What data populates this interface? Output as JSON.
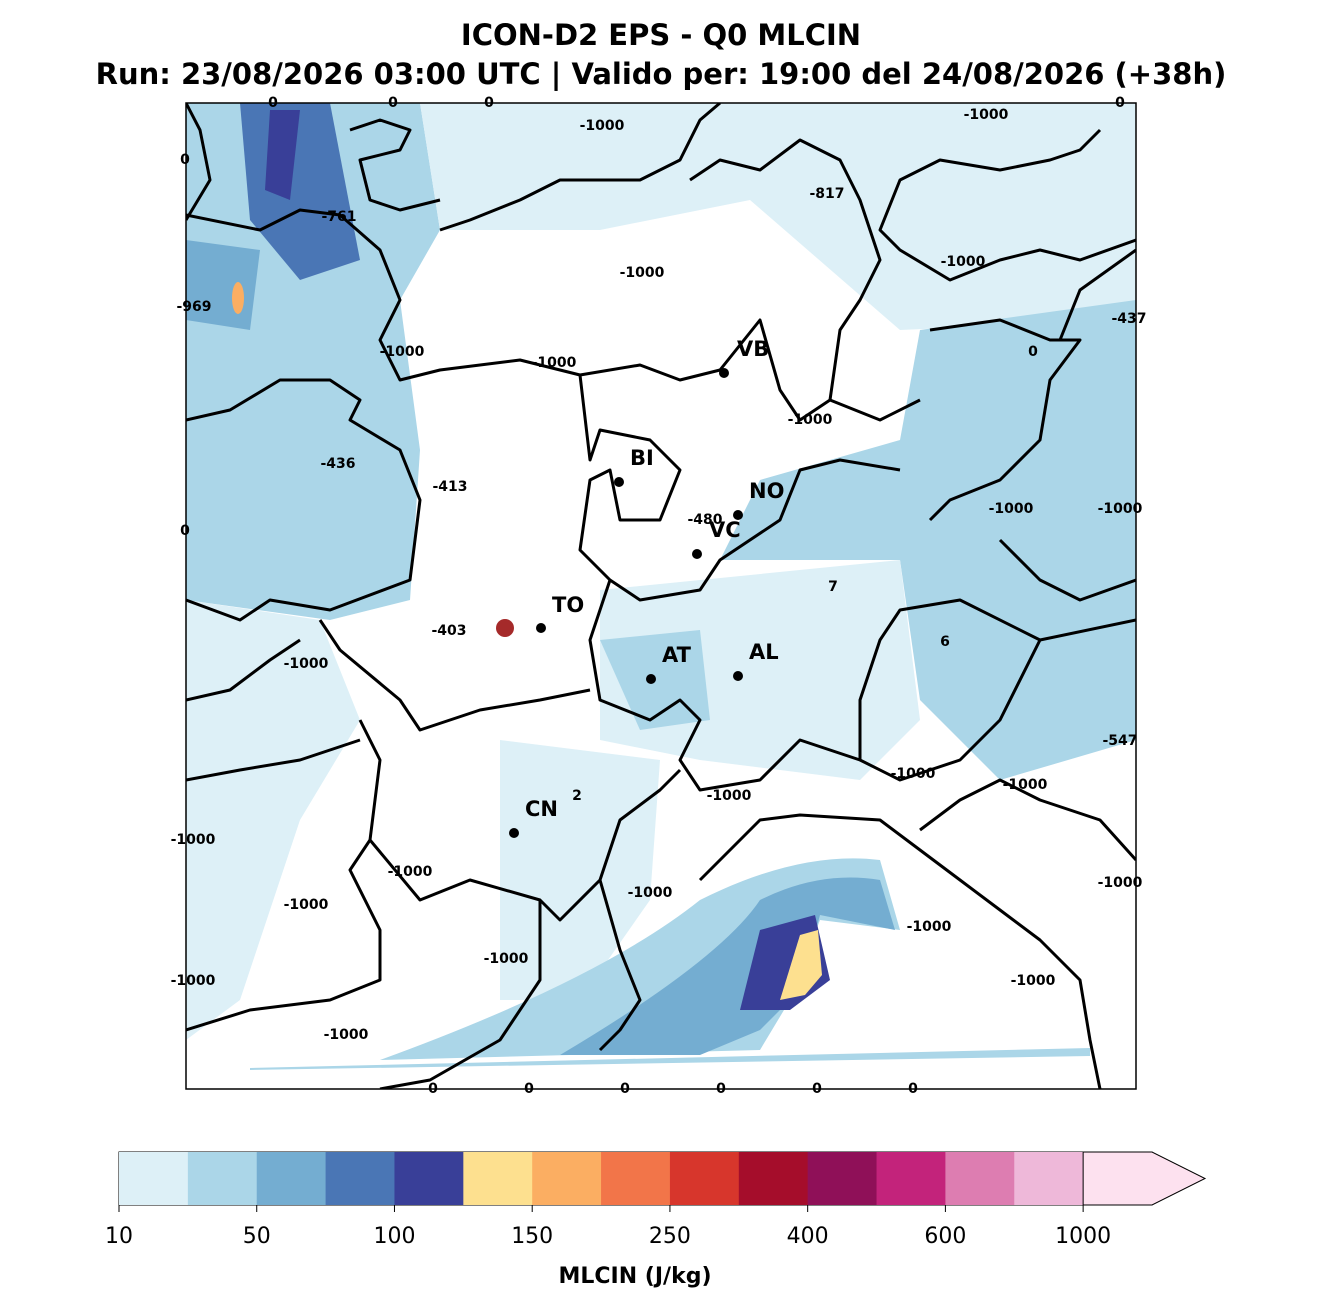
{
  "header": {
    "title": "ICON-D2 EPS - Q0 MLCIN",
    "subtitle": "Run: 23/08/2026 03:00 UTC | Valido per: 19:00 del 24/08/2026 (+38h)"
  },
  "map": {
    "annotations": [
      0,
      0,
      0,
      -1000,
      -1000,
      0,
      0,
      -817,
      -761,
      -1000,
      -1000,
      -969,
      -437,
      -1000,
      -1000,
      0,
      -1000,
      -436,
      -413,
      -480,
      -1000,
      -1000,
      0,
      7,
      -403,
      6,
      -1000,
      -547,
      -1000,
      -1000,
      -1000,
      2,
      -1000,
      -1000,
      -1000,
      -1000,
      -1000,
      -1000,
      -1000,
      -1000,
      -1000,
      -1000,
      0,
      0,
      0,
      0,
      0,
      0
    ],
    "cities": [
      "VB",
      "BI",
      "NO",
      "VC",
      "TO",
      "AT",
      "AL",
      "CN"
    ]
  },
  "colorbar": {
    "colors": [
      "#ddf0f7",
      "#abd6e8",
      "#74add1",
      "#4a76b5",
      "#393f98",
      "#fde08f",
      "#fbae62",
      "#f27549",
      "#d7362c",
      "#a50d2b",
      "#8f1058",
      "#c3237b",
      "#dd7db1",
      "#eeb8d9",
      "#fde1ef"
    ],
    "ticks": [
      10,
      50,
      100,
      150,
      250,
      400,
      600,
      1000
    ],
    "label": "MLCIN (J/kg)"
  }
}
